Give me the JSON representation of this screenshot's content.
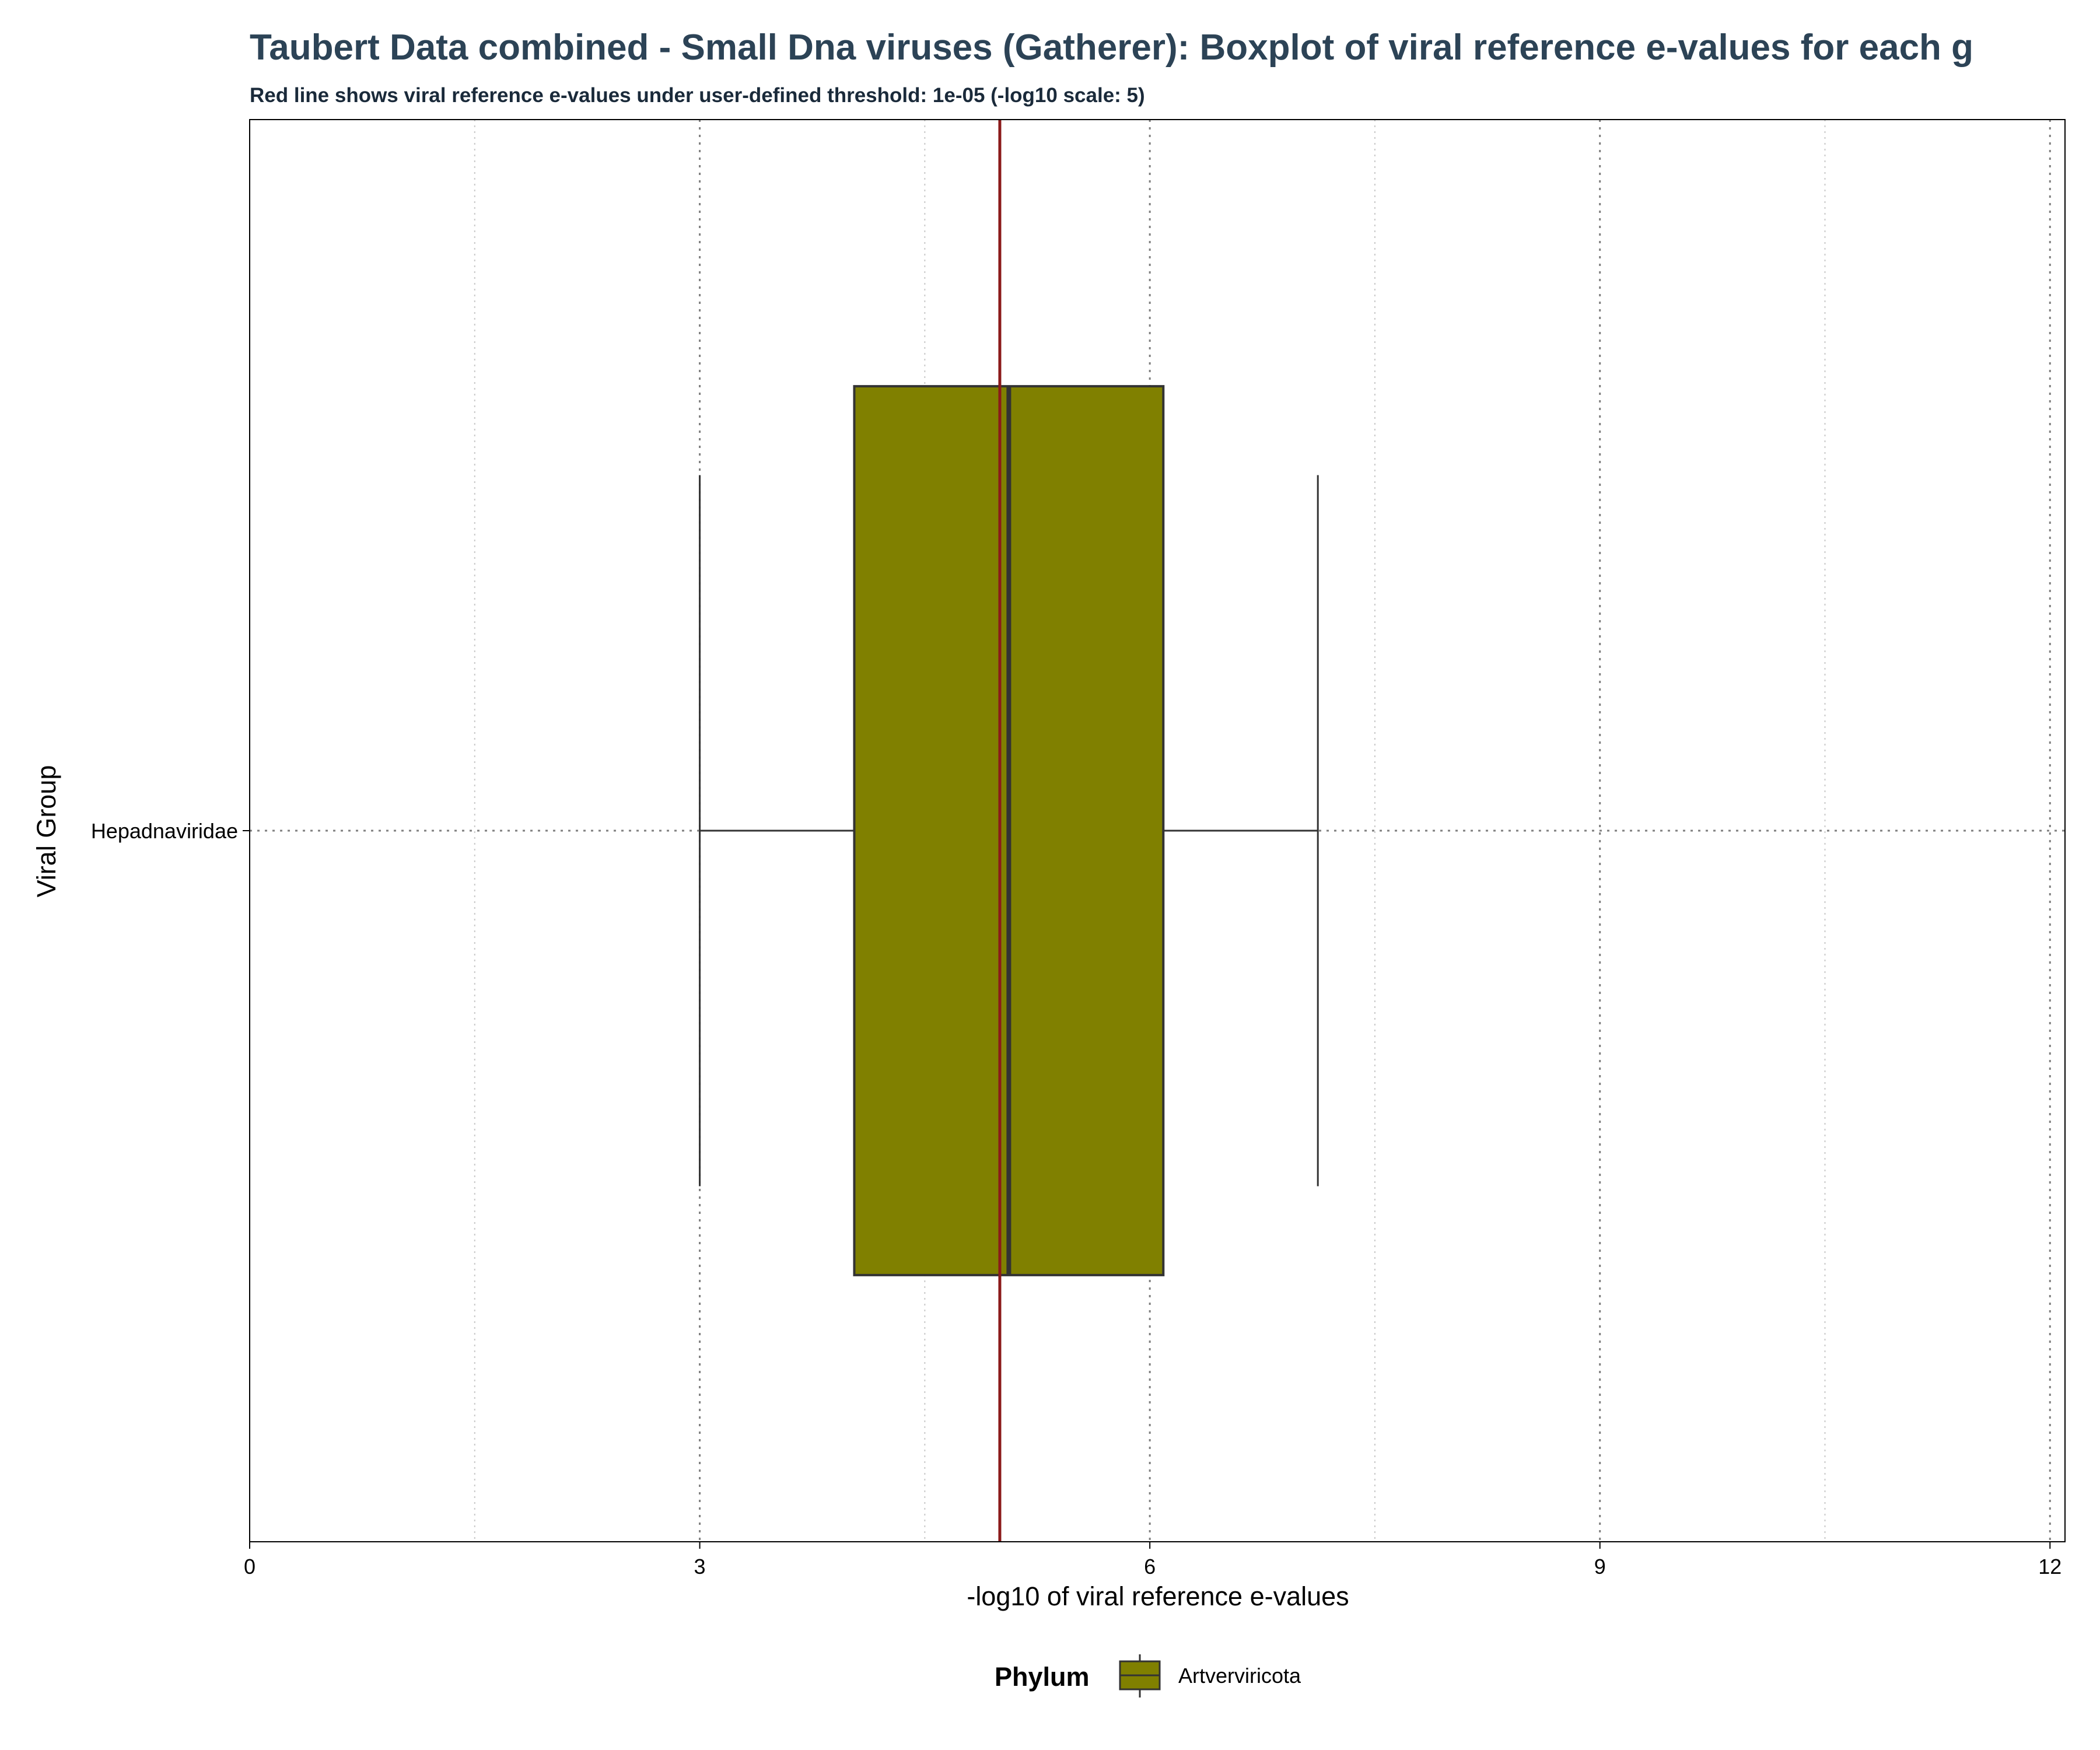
{
  "chart_data": {
    "type": "boxplot",
    "title": "Taubert Data combined - Small Dna viruses (Gatherer): Boxplot of viral reference e-values for each g",
    "subtitle": "Red line shows viral reference e-values under user-defined threshold: 1e-05 (-log10 scale: 5)",
    "xlabel": "-log10 of viral reference e-values",
    "ylabel": "Viral Group",
    "xlim": [
      0,
      12.1
    ],
    "x_ticks": [
      0,
      3,
      6,
      9,
      12
    ],
    "x_tick_labels": [
      "0",
      "3",
      "6",
      "9",
      "12"
    ],
    "categories": [
      "Hepadnaviridae"
    ],
    "boxes": [
      {
        "category": "Hepadnaviridae",
        "phylum": "Artverviricota",
        "whisker_low": 3.0,
        "q1": 4.03,
        "median": 5.06,
        "q3": 6.09,
        "whisker_high": 7.12
      }
    ],
    "threshold": {
      "value": 5,
      "color": "#8B1A1A"
    },
    "legend": {
      "title": "Phylum",
      "position": "bottom",
      "entries": [
        {
          "label": "Artverviricota",
          "color": "#808000"
        }
      ]
    },
    "grid": {
      "major": true,
      "minor": true,
      "style": "dotted"
    },
    "colors": {
      "title": "#2C4356",
      "subtitle": "#1A2A3A",
      "box_fill": "#808000",
      "box_stroke": "#333333"
    }
  }
}
